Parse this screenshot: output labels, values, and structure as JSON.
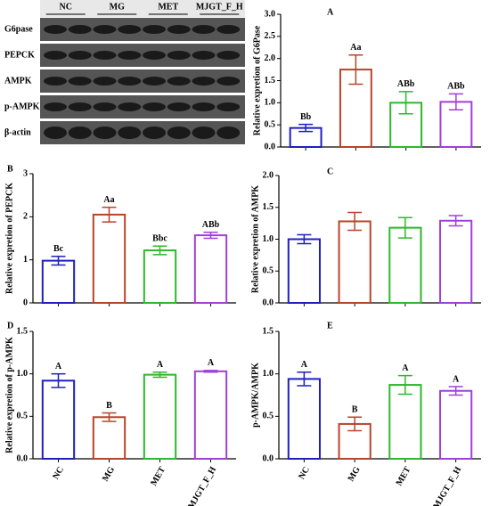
{
  "blot": {
    "groups": [
      "NC",
      "MG",
      "MET",
      "MJGT_F_H"
    ],
    "proteins": [
      "G6pase",
      "PEPCK",
      "AMPK",
      "p-AMPK",
      "β-actin"
    ]
  },
  "chart_data": [
    {
      "type": "bar",
      "panel": "A",
      "ylabel": "Relative expretion of G6Pase",
      "categories": [
        null,
        null,
        null,
        null
      ],
      "values": [
        0.43,
        1.75,
        1.0,
        1.02
      ],
      "errors": [
        0.08,
        0.33,
        0.25,
        0.18
      ],
      "letters": [
        "Bb",
        "Aa",
        "ABb",
        "ABb"
      ],
      "colors": [
        "#1f1fbf",
        "#b8442a",
        "#2db82d",
        "#a23fd8"
      ],
      "ylim": [
        0,
        3
      ],
      "yticks": [
        {
          "value": 0,
          "label": "0.0"
        },
        {
          "value": 0.5,
          "label": "0.5"
        },
        {
          "value": 1,
          "label": "1.0"
        },
        {
          "value": 1.5,
          "label": "1.5"
        },
        {
          "value": 2,
          "label": "2.0"
        },
        {
          "value": 2.5,
          "label": "2.5"
        },
        {
          "value": 3,
          "label": "3.0"
        }
      ]
    },
    {
      "type": "bar",
      "panel": "B",
      "ylabel": "Relative expretion of PEPCK",
      "categories": [
        null,
        null,
        null,
        null
      ],
      "values": [
        0.98,
        2.05,
        1.22,
        1.57
      ],
      "errors": [
        0.1,
        0.17,
        0.1,
        0.07
      ],
      "letters": [
        "Bc",
        "Aa",
        "Bbc",
        "ABb"
      ],
      "colors": [
        "#1f1fbf",
        "#b8442a",
        "#2db82d",
        "#a23fd8"
      ],
      "ylim": [
        0,
        3
      ],
      "yticks": [
        0,
        1,
        2,
        3
      ]
    },
    {
      "type": "bar",
      "panel": "C",
      "ylabel": "Relative expretion of AMPK",
      "categories": [
        null,
        null,
        null,
        null
      ],
      "values": [
        1.0,
        1.28,
        1.18,
        1.29
      ],
      "errors": [
        0.07,
        0.14,
        0.16,
        0.08
      ],
      "colors": [
        "#1f1fbf",
        "#b8442a",
        "#2db82d",
        "#a23fd8"
      ],
      "ylim": [
        0,
        2
      ],
      "yticks": [
        {
          "value": 0,
          "label": "0.0"
        },
        {
          "value": 0.5,
          "label": "0.5"
        },
        {
          "value": 1,
          "label": "1.0"
        },
        {
          "value": 1.5,
          "label": "1.5"
        },
        {
          "value": 2,
          "label": "2.0"
        }
      ]
    },
    {
      "type": "bar",
      "panel": "D",
      "ylabel": "Relative expretion of p-AMPK",
      "categories": [
        "NC",
        "MG",
        "MET",
        "MJGT_F_H"
      ],
      "values": [
        0.92,
        0.49,
        0.99,
        1.03
      ],
      "errors": [
        0.08,
        0.05,
        0.03,
        0.01
      ],
      "letters": [
        "A",
        "B",
        "A",
        "A"
      ],
      "colors": [
        "#1f1fbf",
        "#b8442a",
        "#2db82d",
        "#a23fd8"
      ],
      "ylim": [
        0,
        1.5
      ],
      "yticks": [
        {
          "value": 0,
          "label": "0.0"
        },
        {
          "value": 0.5,
          "label": "0.5"
        },
        {
          "value": 1,
          "label": "1.0"
        },
        {
          "value": 1.5,
          "label": "1.5"
        }
      ]
    },
    {
      "type": "bar",
      "panel": "E",
      "ylabel": "p-AMPK/AMPK",
      "categories": [
        "NC",
        "MG",
        "MET",
        "MJGT_F_H"
      ],
      "values": [
        0.94,
        0.41,
        0.87,
        0.8
      ],
      "errors": [
        0.08,
        0.08,
        0.11,
        0.05
      ],
      "letters": [
        "A",
        "B",
        "A",
        "A"
      ],
      "colors": [
        "#1f1fbf",
        "#b8442a",
        "#2db82d",
        "#a23fd8"
      ],
      "ylim": [
        0,
        1.5
      ],
      "yticks": [
        {
          "value": 0,
          "label": "0.0"
        },
        {
          "value": 0.5,
          "label": "0.5"
        },
        {
          "value": 1,
          "label": "1.0"
        },
        {
          "value": 1.5,
          "label": "1.5"
        }
      ]
    }
  ]
}
